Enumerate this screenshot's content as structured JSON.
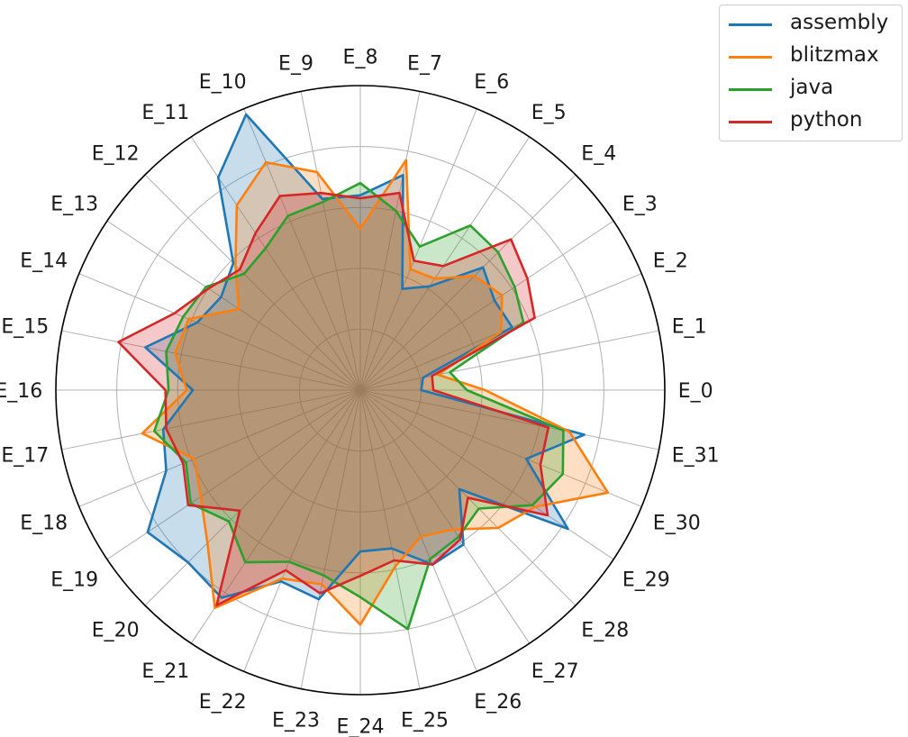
{
  "chart_data": {
    "type": "radar",
    "title": "",
    "categories": [
      "E_0",
      "E_1",
      "E_2",
      "E_3",
      "E_4",
      "E_5",
      "E_6",
      "E_7",
      "E_8",
      "E_9",
      "E_10",
      "E_11",
      "E_12",
      "E_13",
      "E_14",
      "E_15",
      "E_16",
      "E_17",
      "E_18",
      "E_19",
      "E_20",
      "E_21",
      "E_22",
      "E_23",
      "E_24",
      "E_25",
      "E_26",
      "E_27",
      "E_28",
      "E_29",
      "E_30",
      "E_31"
    ],
    "rlim": [
      0,
      1
    ],
    "ring_count": 5,
    "grid": true,
    "legend_position": "outside top-right",
    "series": [
      {
        "name": "assembly",
        "color": "#1f77b4",
        "values": [
          0.2,
          0.21,
          0.54,
          0.53,
          0.57,
          0.41,
          0.36,
          0.72,
          0.64,
          0.64,
          0.98,
          0.84,
          0.59,
          0.55,
          0.58,
          0.72,
          0.55,
          0.66,
          0.69,
          0.84,
          0.8,
          0.82,
          0.68,
          0.7,
          0.53,
          0.53,
          0.62,
          0.61,
          0.46,
          0.82,
          0.59,
          0.75
        ]
      },
      {
        "name": "blitzmax",
        "color": "#ff7f0e",
        "values": [
          0.41,
          0.26,
          0.5,
          0.56,
          0.53,
          0.44,
          0.43,
          0.77,
          0.53,
          0.73,
          0.81,
          0.73,
          0.58,
          0.48,
          0.61,
          0.62,
          0.57,
          0.73,
          0.59,
          0.63,
          0.71,
          0.86,
          0.67,
          0.65,
          0.77,
          0.59,
          0.52,
          0.55,
          0.64,
          0.69,
          0.88,
          0.7
        ]
      },
      {
        "name": "java",
        "color": "#2ca02c",
        "values": [
          0.35,
          0.3,
          0.58,
          0.61,
          0.64,
          0.65,
          0.51,
          0.6,
          0.68,
          0.63,
          0.62,
          0.56,
          0.54,
          0.61,
          0.63,
          0.65,
          0.63,
          0.69,
          0.62,
          0.67,
          0.61,
          0.68,
          0.61,
          0.62,
          0.68,
          0.8,
          0.6,
          0.58,
          0.55,
          0.68,
          0.72,
          0.68
        ]
      },
      {
        "name": "python",
        "color": "#d62728",
        "values": [
          0.24,
          0.24,
          0.62,
          0.66,
          0.7,
          0.49,
          0.46,
          0.66,
          0.63,
          0.66,
          0.69,
          0.62,
          0.56,
          0.6,
          0.66,
          0.81,
          0.64,
          0.65,
          0.63,
          0.68,
          0.56,
          0.85,
          0.64,
          0.68,
          0.61,
          0.57,
          0.62,
          0.59,
          0.5,
          0.74,
          0.64,
          0.63
        ]
      }
    ]
  },
  "legend": {
    "items": [
      {
        "label": "assembly",
        "color": "#1f77b4"
      },
      {
        "label": "blitzmax",
        "color": "#ff7f0e"
      },
      {
        "label": "java",
        "color": "#2ca02c"
      },
      {
        "label": "python",
        "color": "#d62728"
      }
    ]
  }
}
